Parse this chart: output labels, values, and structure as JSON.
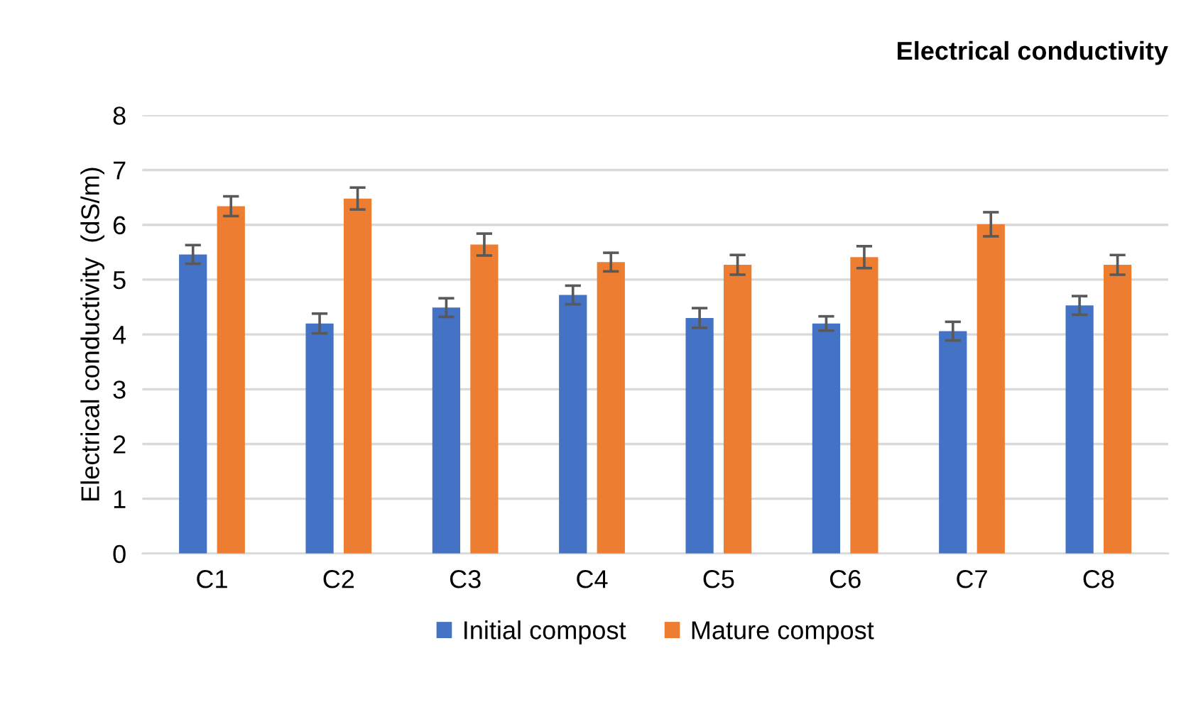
{
  "chart_data": {
    "type": "bar",
    "title": "Electrical conductivity",
    "ylabel": "Electrical conductivity  (dS/m)",
    "categories": [
      "C1",
      "C2",
      "C3",
      "C4",
      "C5",
      "C6",
      "C7",
      "C8"
    ],
    "series": [
      {
        "name": "Initial compost",
        "color": "#4472c4",
        "values": [
          5.46,
          4.2,
          4.49,
          4.72,
          4.3,
          4.2,
          4.06,
          4.53
        ],
        "errors": [
          0.17,
          0.18,
          0.17,
          0.17,
          0.18,
          0.13,
          0.17,
          0.17
        ]
      },
      {
        "name": "Mature compost",
        "color": "#ed7d31",
        "values": [
          6.34,
          6.48,
          5.64,
          5.32,
          5.27,
          5.41,
          6.01,
          5.27
        ],
        "errors": [
          0.18,
          0.2,
          0.2,
          0.17,
          0.18,
          0.2,
          0.22,
          0.18
        ]
      }
    ],
    "ylim": [
      0,
      8
    ],
    "yticks": [
      0,
      1,
      2,
      3,
      4,
      5,
      6,
      7,
      8
    ],
    "grid": "y",
    "legend": "bottom"
  }
}
